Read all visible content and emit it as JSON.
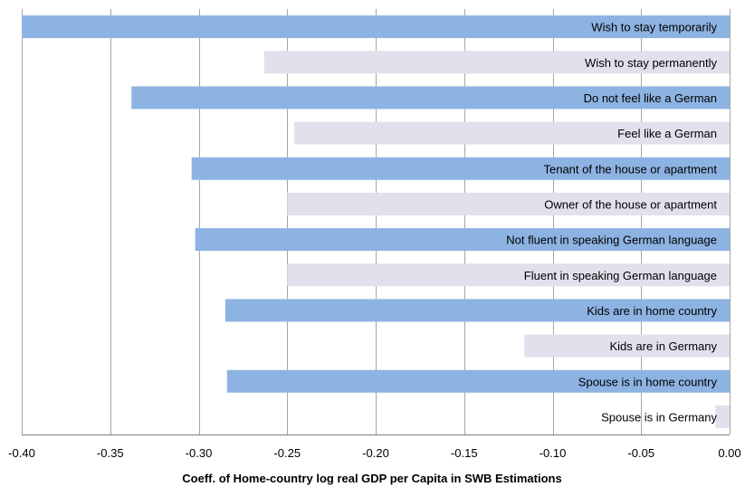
{
  "chart_data": {
    "type": "bar",
    "orientation": "horizontal",
    "title": "",
    "xlabel": "Coeff. of Home-country log real GDP per Capita in SWB Estimations",
    "ylabel": "",
    "xlim": [
      -0.4,
      0.0
    ],
    "grid": "vertical",
    "x_ticks": [
      "-0.40",
      "-0.35",
      "-0.30",
      "-0.25",
      "-0.20",
      "-0.15",
      "-0.10",
      "-0.05",
      "0.00"
    ],
    "x_tick_values": [
      -0.4,
      -0.35,
      -0.3,
      -0.25,
      -0.2,
      -0.15,
      -0.1,
      -0.05,
      0.0
    ],
    "categories": [
      "Wish to stay temporarily",
      "Wish to stay permanently",
      "Do not feel like a German",
      "Feel like a German",
      "Tenant of the house or apartment",
      "Owner of the house or apartment",
      "Not fluent in speaking German language",
      "Fluent in speaking  German language",
      "Kids are in home country",
      "Kids are in Germany",
      "Spouse is in home country",
      "Spouse is in Germany"
    ],
    "values": [
      -0.4,
      -0.263,
      -0.338,
      -0.246,
      -0.304,
      -0.25,
      -0.302,
      -0.25,
      -0.285,
      -0.116,
      -0.284,
      -0.008
    ],
    "bar_colors": [
      "#8db3e2",
      "#e4dfec",
      "#8db3e2",
      "#e4dfec",
      "#8db3e2",
      "#e4dfec",
      "#8db3e2",
      "#e4dfec",
      "#8db3e2",
      "#e4dfec",
      "#8db3e2",
      "#e4dfec"
    ]
  }
}
